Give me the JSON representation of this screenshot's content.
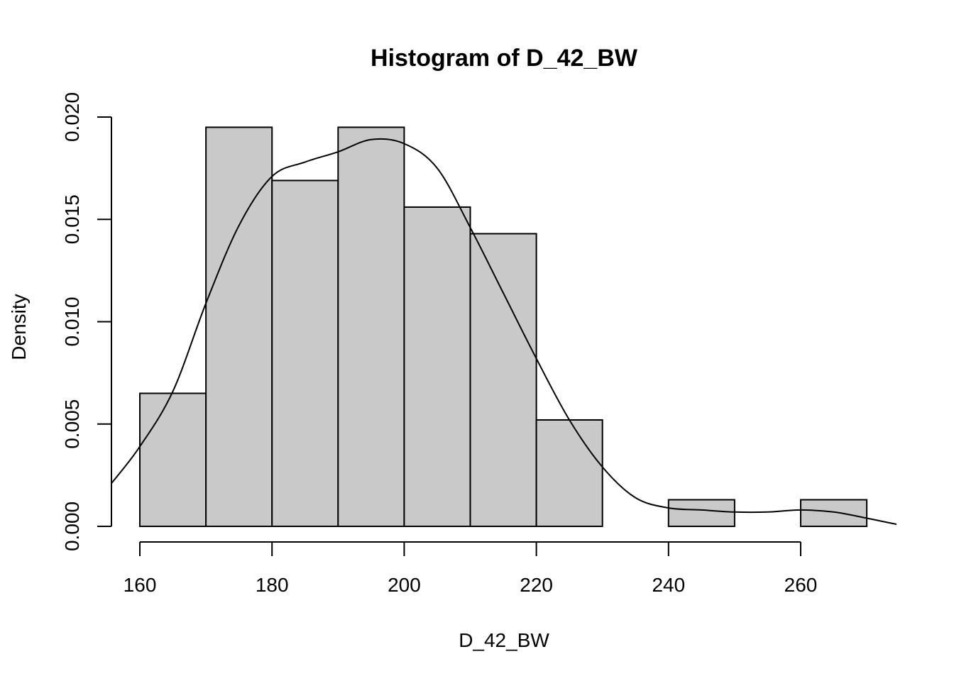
{
  "chart_data": {
    "type": "bar",
    "title": "Histogram of D_42_BW",
    "xlabel": "D_42_BW",
    "ylabel": "Density",
    "bins": [
      {
        "start": 160,
        "end": 170,
        "density": 0.0065
      },
      {
        "start": 170,
        "end": 180,
        "density": 0.0195
      },
      {
        "start": 180,
        "end": 190,
        "density": 0.0169
      },
      {
        "start": 190,
        "end": 200,
        "density": 0.0195
      },
      {
        "start": 200,
        "end": 210,
        "density": 0.0156
      },
      {
        "start": 210,
        "end": 220,
        "density": 0.0143
      },
      {
        "start": 220,
        "end": 230,
        "density": 0.0052
      },
      {
        "start": 230,
        "end": 240,
        "density": 0.0
      },
      {
        "start": 240,
        "end": 250,
        "density": 0.0013
      },
      {
        "start": 250,
        "end": 260,
        "density": 0.0
      },
      {
        "start": 260,
        "end": 270,
        "density": 0.0013
      }
    ],
    "density_curve": {
      "x": [
        155.7,
        160,
        165,
        170,
        175,
        180,
        185,
        190,
        195,
        200,
        205,
        210,
        215,
        220,
        225,
        230,
        235,
        240,
        245,
        250,
        255,
        260,
        265,
        270,
        274.5
      ],
      "y": [
        0.0021,
        0.0039,
        0.0066,
        0.0109,
        0.0147,
        0.0171,
        0.0178,
        0.0183,
        0.0189,
        0.0187,
        0.0175,
        0.0146,
        0.0114,
        0.0082,
        0.0052,
        0.0029,
        0.0014,
        0.0009,
        0.0008,
        0.0007,
        0.0007,
        0.0008,
        0.0007,
        0.0004,
        0.0001
      ]
    },
    "xlim": [
      155.7,
      274.5
    ],
    "ylim": [
      0,
      0.02
    ],
    "x_ticks": [
      160,
      180,
      200,
      220,
      240,
      260
    ],
    "y_ticks": [
      0.0,
      0.005,
      0.01,
      0.015,
      0.02
    ],
    "x_tick_labels": [
      "160",
      "180",
      "200",
      "220",
      "240",
      "260"
    ],
    "y_tick_labels": [
      "0.000",
      "0.005",
      "0.010",
      "0.015",
      "0.020"
    ],
    "grid": false,
    "legend": "none",
    "colors": {
      "bar_fill": "#c9c9c9",
      "stroke": "#000000",
      "background": "#ffffff"
    }
  }
}
